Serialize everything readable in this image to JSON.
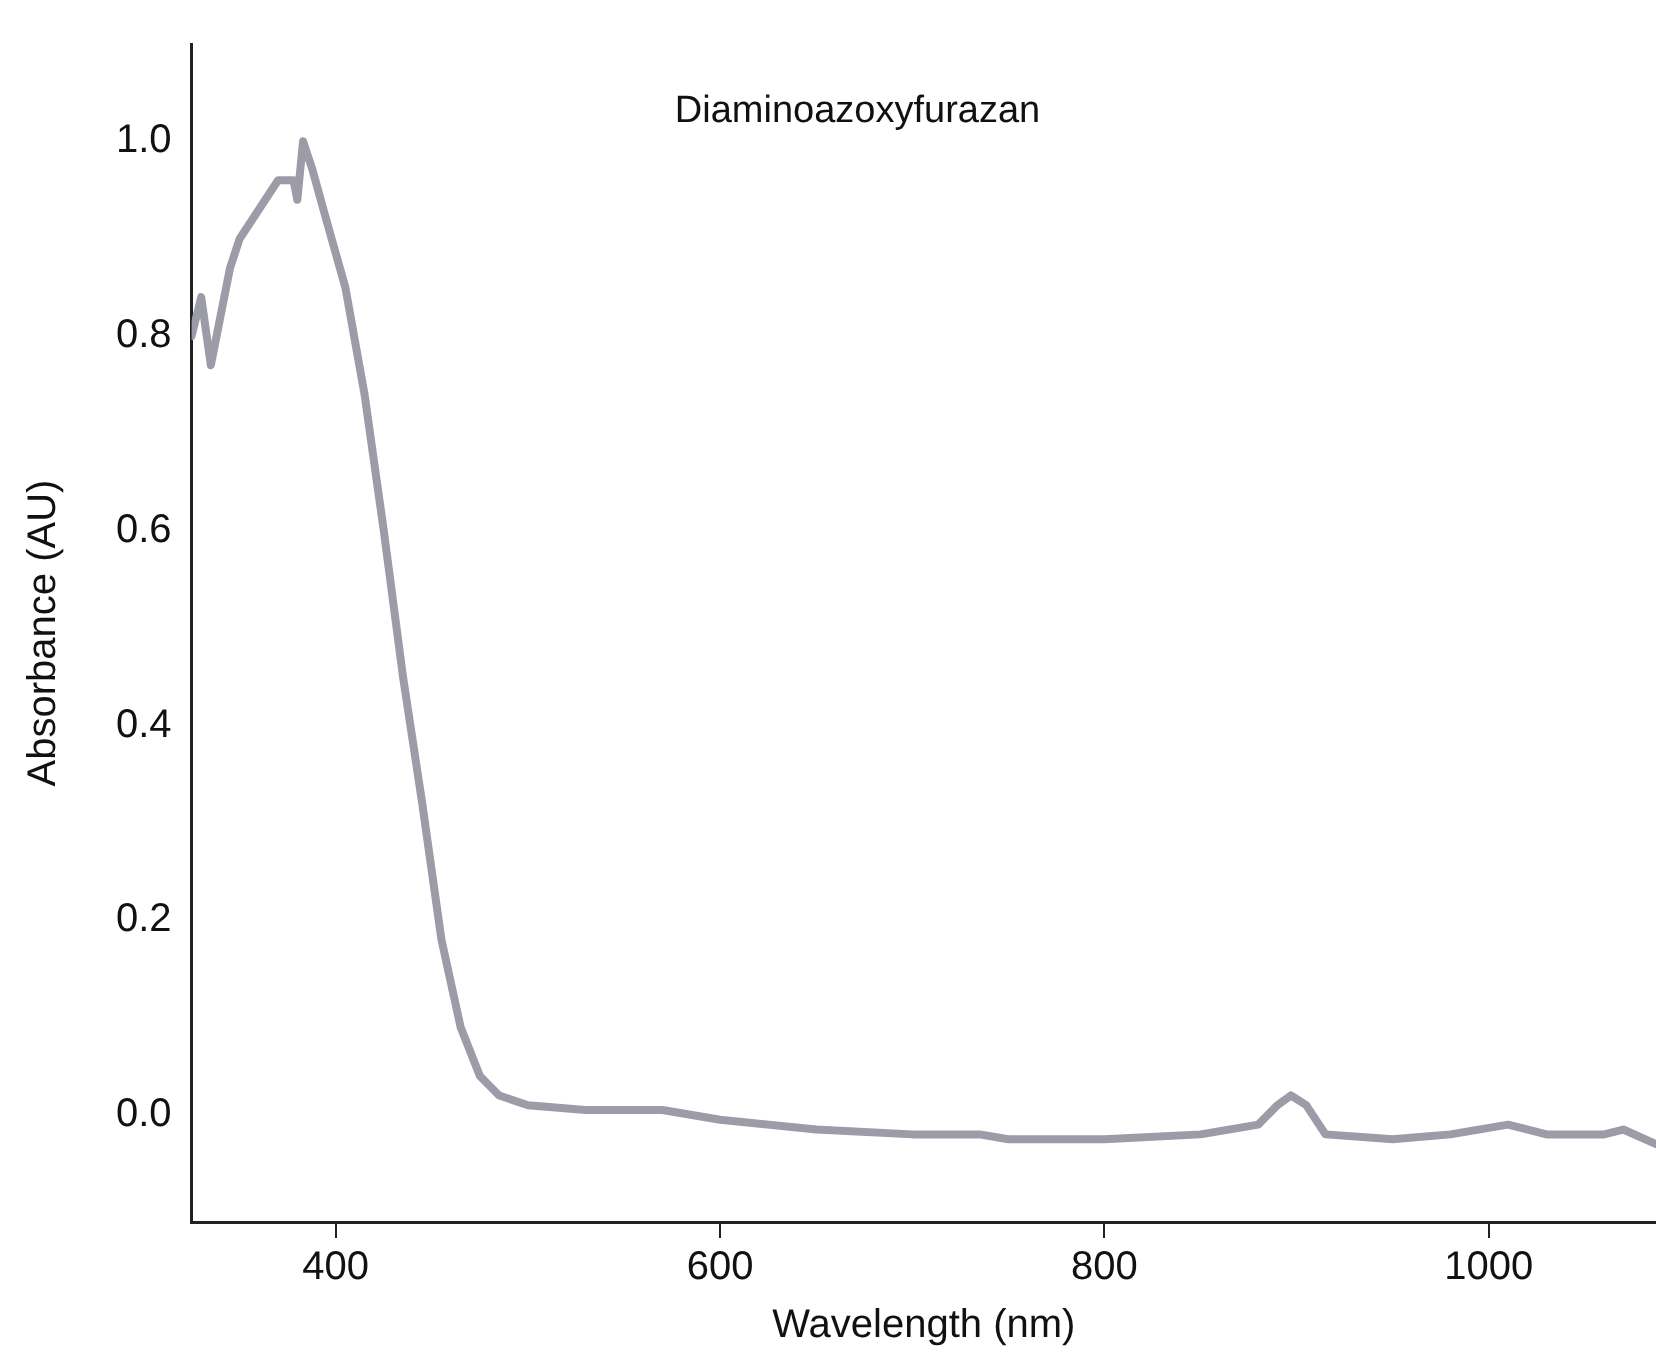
{
  "chart_data": {
    "type": "line",
    "xlabel": "Wavelength (nm)",
    "ylabel": "Absorbance (AU)",
    "annotations": [
      "Diaminoazoxyfurazan"
    ],
    "xlim": [
      325,
      1087
    ],
    "ylim": [
      -0.11,
      1.1
    ],
    "xticks": [
      400,
      600,
      800,
      1000
    ],
    "yticks": [
      {
        "value": 0,
        "label": "0.0"
      },
      0.2,
      0.4,
      0.6,
      0.8,
      {
        "value": 1,
        "label": "1.0"
      }
    ],
    "grid": false,
    "legend": false,
    "marker": "none",
    "line_style": "solid",
    "series": [
      {
        "color": "#9c9ca8",
        "x": [
          325,
          330,
          335,
          340,
          345,
          350,
          360,
          370,
          378,
          380,
          383,
          388,
          395,
          405,
          415,
          425,
          435,
          445,
          455,
          465,
          475,
          485,
          500,
          530,
          570,
          600,
          650,
          700,
          735,
          750,
          800,
          850,
          880,
          890,
          897,
          905,
          915,
          950,
          980,
          1010,
          1030,
          1060,
          1070,
          1087
        ],
        "values": [
          0.8,
          0.84,
          0.77,
          0.82,
          0.87,
          0.9,
          0.93,
          0.96,
          0.96,
          0.94,
          1.0,
          0.97,
          0.92,
          0.85,
          0.74,
          0.6,
          0.45,
          0.32,
          0.18,
          0.09,
          0.04,
          0.02,
          0.01,
          0.005,
          0.005,
          -0.005,
          -0.015,
          -0.02,
          -0.02,
          -0.025,
          -0.025,
          -0.02,
          -0.01,
          0.01,
          0.02,
          0.01,
          -0.02,
          -0.025,
          -0.02,
          -0.01,
          -0.02,
          -0.02,
          -0.015,
          -0.03
        ]
      }
    ]
  }
}
